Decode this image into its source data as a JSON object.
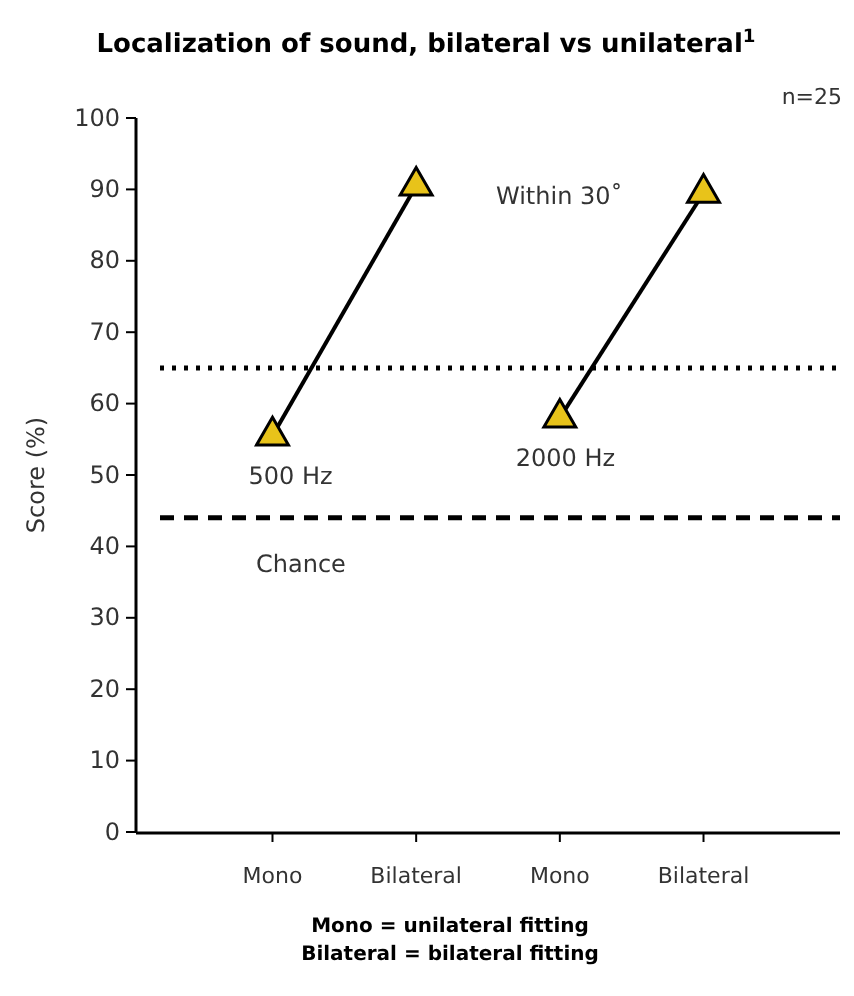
{
  "chart_data": {
    "type": "line",
    "title": "Localization of sound, bilateral vs unilateral$^{1}$",
    "ylabel": "Score (%)",
    "categories": [
      "Mono",
      "Bilateral",
      "Mono",
      "Bilateral"
    ],
    "series": [
      {
        "name": "500 Hz",
        "color": "#000000",
        "values": [
          55.5,
          90.5,
          null,
          null
        ]
      },
      {
        "name": "2000 Hz",
        "color": "#000000",
        "values": [
          null,
          null,
          58,
          89.5
        ]
      }
    ],
    "marker": "triangle",
    "grid": false,
    "ylim": [
      0,
      100
    ],
    "yticks": [
      0,
      10,
      20,
      30,
      40,
      50,
      60,
      70,
      80,
      90,
      100
    ],
    "ref_lines": [
      {
        "axis": "y",
        "value": 65,
        "line_style": "dotted",
        "color": "#000000"
      },
      {
        "axis": "y",
        "value": 44,
        "label": "Chance",
        "line_style": "dashed",
        "color": "#000000"
      }
    ],
    "annotations": [
      "n=25",
      "Mono = unilateral fitting",
      "Bilateral = bilateral fitting",
      "Within 30˚"
    ]
  }
}
